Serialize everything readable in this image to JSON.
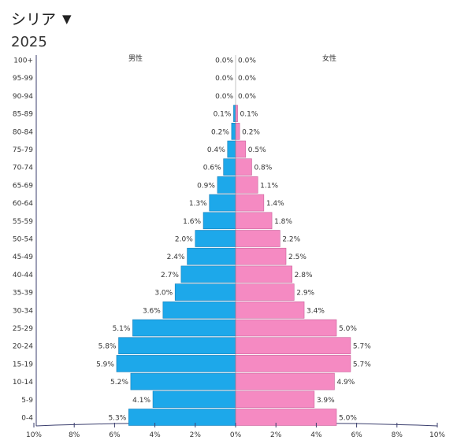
{
  "header": {
    "country": "シリア",
    "year": "2025"
  },
  "icons": {
    "dropdown": "caret-down-icon"
  },
  "colors": {
    "male": "#1da8ea",
    "female": "#f58ac2",
    "axis": "#3b3f6e",
    "text": "#333333"
  },
  "chart_data": {
    "type": "bar",
    "orientation": "horizontal",
    "pyramid": true,
    "categories": [
      "0-4",
      "5-9",
      "10-14",
      "15-19",
      "20-24",
      "25-29",
      "30-34",
      "35-39",
      "40-44",
      "45-49",
      "50-54",
      "55-59",
      "60-64",
      "65-69",
      "70-74",
      "75-79",
      "80-84",
      "85-89",
      "90-94",
      "95-99",
      "100+"
    ],
    "series": [
      {
        "name": "男性",
        "values": [
          5.3,
          4.1,
          5.2,
          5.9,
          5.8,
          5.1,
          3.6,
          3.0,
          2.7,
          2.4,
          2.0,
          1.6,
          1.3,
          0.9,
          0.6,
          0.4,
          0.2,
          0.1,
          0.0,
          0.0,
          0.0
        ]
      },
      {
        "name": "女性",
        "values": [
          5.0,
          3.9,
          4.9,
          5.7,
          5.7,
          5.0,
          3.4,
          2.9,
          2.8,
          2.5,
          2.2,
          1.8,
          1.4,
          1.1,
          0.8,
          0.5,
          0.2,
          0.1,
          0.0,
          0.0,
          0.0
        ]
      }
    ],
    "x_ticks": [
      "10%",
      "8%",
      "6%",
      "4%",
      "2%",
      "0%",
      "2%",
      "4%",
      "6%",
      "8%",
      "10%"
    ],
    "xlim": [
      -10,
      10
    ],
    "unit": "%"
  }
}
